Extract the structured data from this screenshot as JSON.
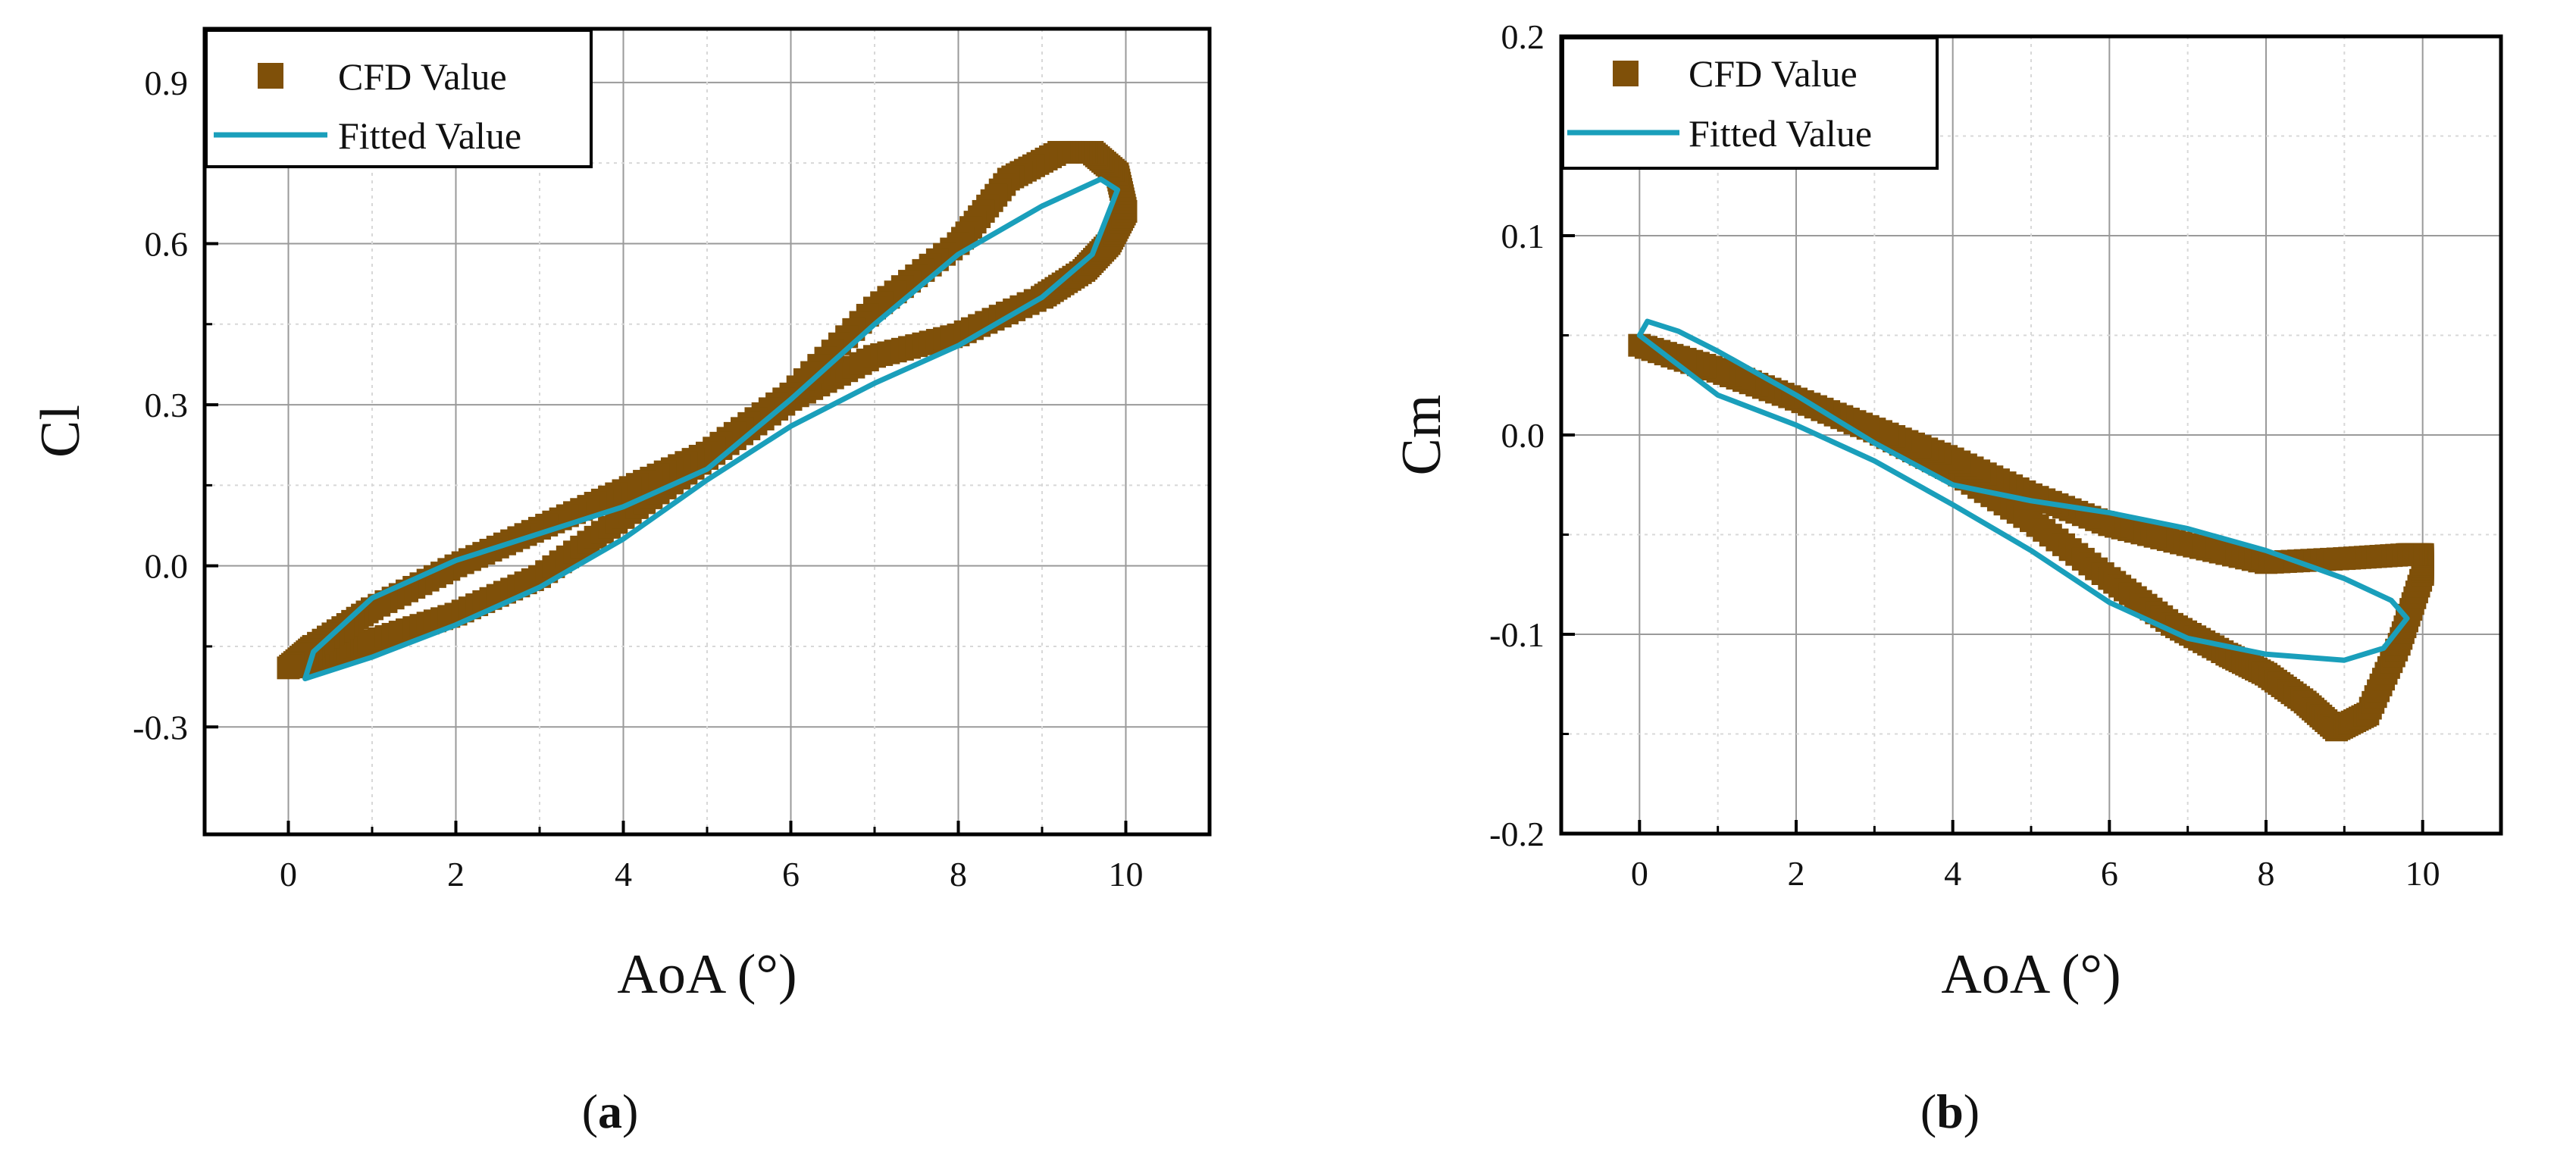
{
  "chart_data": [
    {
      "type": "line",
      "panel": "a",
      "xlabel": "AoA (°)",
      "ylabel": "Cl",
      "xlim": [
        -1,
        11
      ],
      "ylim": [
        -0.5,
        1.0
      ],
      "xticks": [
        0,
        2,
        4,
        6,
        8,
        10
      ],
      "xtick_labels": [
        "0",
        "2",
        "4",
        "6",
        "8",
        "10"
      ],
      "yticks": [
        -0.3,
        0.0,
        0.3,
        0.6,
        0.9
      ],
      "ytick_labels": [
        "-0.3",
        "0.0",
        "0.3",
        "0.6",
        "0.9"
      ],
      "grid": true,
      "legend_position": "top-left",
      "series": [
        {
          "name": "CFD Value",
          "marker": "square",
          "color": "#7f5009",
          "x": [
            0.0,
            0.5,
            1,
            2,
            3,
            4,
            5,
            6,
            7,
            8,
            9,
            9.5,
            9.8,
            10.0,
            9.9,
            9.6,
            9.2,
            8.6,
            8,
            7,
            6,
            5,
            4,
            3,
            2,
            1,
            0.3,
            0.0
          ],
          "y": [
            -0.19,
            -0.17,
            -0.14,
            -0.09,
            -0.02,
            0.09,
            0.2,
            0.31,
            0.39,
            0.43,
            0.5,
            0.55,
            0.6,
            0.66,
            0.73,
            0.77,
            0.77,
            0.72,
            0.6,
            0.48,
            0.32,
            0.21,
            0.14,
            0.07,
            0.0,
            -0.08,
            -0.15,
            -0.19
          ]
        },
        {
          "name": "Fitted Value",
          "marker": "none",
          "color": "#1a9fbb",
          "x": [
            0.2,
            1,
            2,
            3,
            4,
            5,
            6,
            7,
            8,
            9,
            9.6,
            9.9,
            9.7,
            9.0,
            8,
            7,
            6,
            5,
            4,
            3,
            2,
            1,
            0.3,
            0.2
          ],
          "y": [
            -0.21,
            -0.17,
            -0.11,
            -0.04,
            0.05,
            0.16,
            0.26,
            0.34,
            0.41,
            0.5,
            0.58,
            0.7,
            0.72,
            0.67,
            0.58,
            0.45,
            0.31,
            0.18,
            0.11,
            0.06,
            0.01,
            -0.06,
            -0.16,
            -0.21
          ]
        }
      ],
      "caption": "a"
    },
    {
      "type": "line",
      "panel": "b",
      "xlabel": "AoA (°)",
      "ylabel": "Cm",
      "xlim": [
        -1,
        11
      ],
      "ylim": [
        -0.2,
        0.2
      ],
      "xticks": [
        0,
        2,
        4,
        6,
        8,
        10
      ],
      "xtick_labels": [
        "0",
        "2",
        "4",
        "6",
        "8",
        "10"
      ],
      "yticks": [
        -0.2,
        -0.1,
        0.0,
        0.1,
        0.2
      ],
      "ytick_labels": [
        "-0.2",
        "-0.1",
        "0.0",
        "0.1",
        "0.2"
      ],
      "grid": true,
      "legend_position": "top-left",
      "series": [
        {
          "name": "CFD Value",
          "marker": "square",
          "color": "#7f5009",
          "x": [
            0.0,
            1,
            2,
            3,
            4,
            5,
            6,
            6.8,
            7.5,
            8.0,
            8.5,
            8.9,
            9.3,
            9.7,
            10.0,
            10.0,
            9.8,
            9.0,
            8.0,
            7.0,
            6.0,
            5.0,
            4.0,
            3.0,
            2.0,
            1.0,
            0.0
          ],
          "y": [
            0.045,
            0.033,
            0.018,
            0.002,
            -0.018,
            -0.043,
            -0.072,
            -0.095,
            -0.11,
            -0.12,
            -0.134,
            -0.148,
            -0.14,
            -0.105,
            -0.07,
            -0.06,
            -0.06,
            -0.062,
            -0.064,
            -0.055,
            -0.045,
            -0.03,
            -0.012,
            0.003,
            0.018,
            0.032,
            0.045
          ]
        },
        {
          "name": "Fitted Value",
          "marker": "none",
          "color": "#1a9fbb",
          "x": [
            0.0,
            0.1,
            0.5,
            1,
            2,
            3,
            4,
            5,
            6,
            7,
            8,
            9,
            9.6,
            9.8,
            9.5,
            9.0,
            8,
            7,
            6,
            5,
            4,
            3,
            2,
            1,
            0.0
          ],
          "y": [
            0.05,
            0.057,
            0.052,
            0.042,
            0.02,
            -0.004,
            -0.025,
            -0.033,
            -0.039,
            -0.047,
            -0.058,
            -0.072,
            -0.083,
            -0.092,
            -0.107,
            -0.113,
            -0.11,
            -0.102,
            -0.084,
            -0.058,
            -0.035,
            -0.013,
            0.005,
            0.02,
            0.05
          ]
        }
      ],
      "caption": "b"
    }
  ]
}
